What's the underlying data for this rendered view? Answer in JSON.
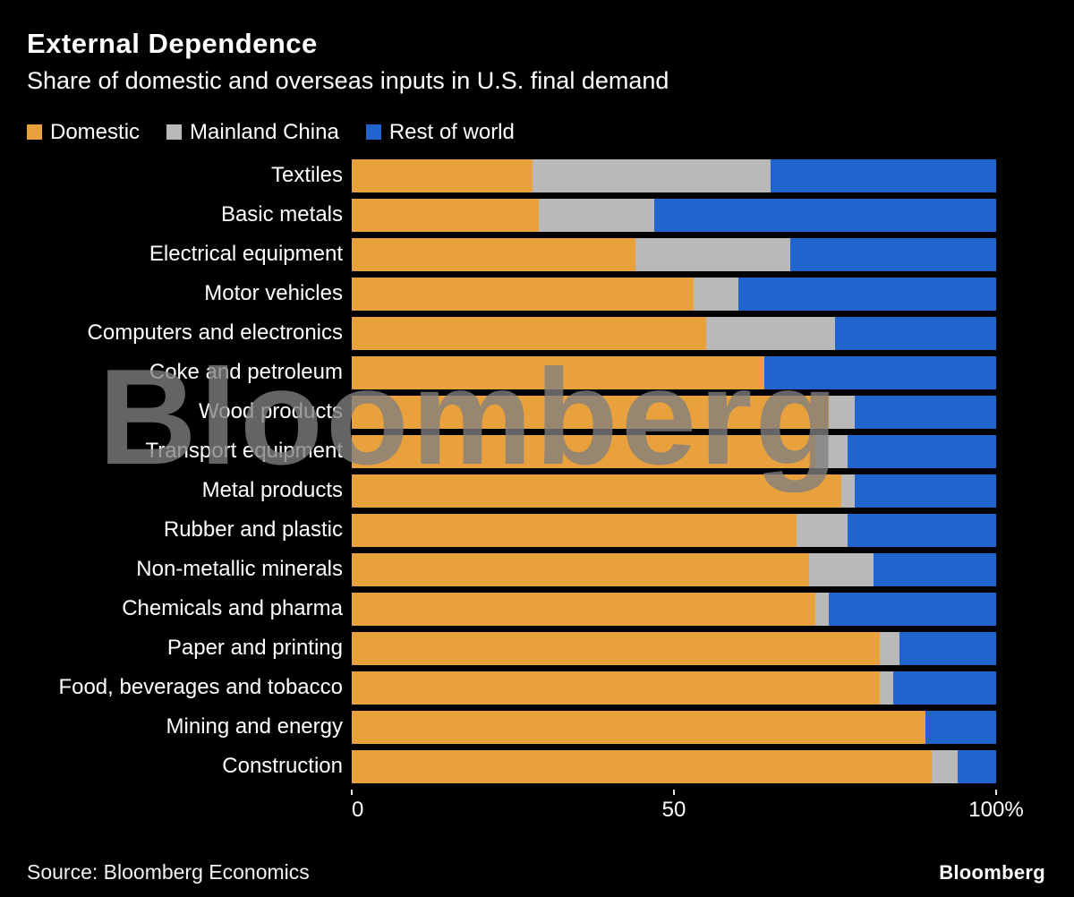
{
  "header": {
    "title": "External Dependence",
    "subtitle": "Share of domestic and overseas inputs in U.S. final demand"
  },
  "watermark": "Bloomberg",
  "footer": {
    "source": "Source: Bloomberg Economics",
    "logo": "Bloomberg"
  },
  "colors": {
    "background": "#000000",
    "text": "#ffffff",
    "domestic": "#e8a13c",
    "mainland_china": "#b9b9b9",
    "rest_of_world": "#2164ce"
  },
  "chart_data": {
    "type": "bar",
    "orientation": "horizontal",
    "stacked": true,
    "unit": "percent",
    "xlim": [
      0,
      100
    ],
    "grid": false,
    "legend_position": "top",
    "x_ticks": [
      {
        "value": 0,
        "label": "0"
      },
      {
        "value": 50,
        "label": "50"
      },
      {
        "value": 100,
        "label": "100%"
      }
    ],
    "categories": [
      "Textiles",
      "Basic metals",
      "Electrical equipment",
      "Motor vehicles",
      "Computers and electronics",
      "Coke and petroleum",
      "Wood products",
      "Transport equipment",
      "Metal products",
      "Rubber and plastic",
      "Non-metallic minerals",
      "Chemicals and pharma",
      "Paper and printing",
      "Food, beverages and tobacco",
      "Mining and energy",
      "Construction"
    ],
    "series": [
      {
        "name": "Domestic",
        "color": "#e8a13c",
        "values": [
          28,
          29,
          44,
          53,
          55,
          64,
          74,
          72,
          76,
          69,
          71,
          72,
          82,
          82,
          89,
          90
        ]
      },
      {
        "name": "Mainland China",
        "color": "#b9b9b9",
        "values": [
          37,
          18,
          24,
          7,
          20,
          0,
          4,
          5,
          2,
          8,
          10,
          2,
          3,
          2,
          0,
          4
        ]
      },
      {
        "name": "Rest of world",
        "color": "#2164ce",
        "values": [
          35,
          53,
          32,
          40,
          25,
          36,
          22,
          23,
          22,
          23,
          19,
          26,
          15,
          16,
          11,
          6
        ]
      }
    ]
  }
}
